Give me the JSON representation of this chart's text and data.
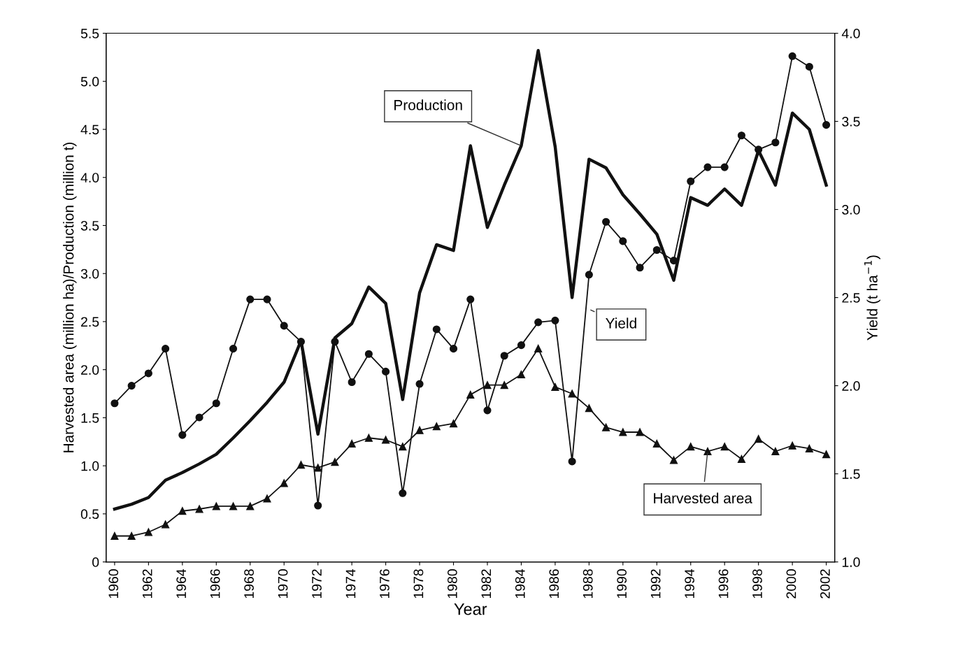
{
  "chart_data": {
    "type": "line",
    "xlabel": "Year",
    "ylabel": "Harvested area (million ha)/Production (million t)",
    "y2label": "Yield (t ha$^{−1}$)",
    "x": [
      1960,
      1961,
      1962,
      1963,
      1964,
      1965,
      1966,
      1967,
      1968,
      1969,
      1970,
      1971,
      1972,
      1973,
      1974,
      1975,
      1976,
      1977,
      1978,
      1979,
      1980,
      1981,
      1982,
      1983,
      1984,
      1985,
      1986,
      1987,
      1988,
      1989,
      1990,
      1991,
      1992,
      1993,
      1994,
      1995,
      1996,
      1997,
      1998,
      1999,
      2000,
      2001,
      2002
    ],
    "series": [
      {
        "name": "Production",
        "color": "#111111",
        "marker": "none",
        "values": [
          0.55,
          0.6,
          0.67,
          0.85,
          0.93,
          1.02,
          1.12,
          1.29,
          1.47,
          1.66,
          1.87,
          2.3,
          1.33,
          2.33,
          2.48,
          2.86,
          2.69,
          1.69,
          2.8,
          3.3,
          3.24,
          4.33,
          3.48,
          3.92,
          4.33,
          5.32,
          4.32,
          2.75,
          4.19,
          4.1,
          3.82,
          3.62,
          3.41,
          2.93,
          3.79,
          3.71,
          3.88,
          3.71,
          4.28,
          3.92,
          4.67,
          4.5,
          3.92
        ]
      },
      {
        "name": "Yield",
        "color": "#111111",
        "marker": "circle",
        "axis": "y2",
        "values": [
          1.9,
          2.0,
          2.07,
          2.21,
          1.72,
          1.82,
          1.9,
          2.21,
          2.49,
          2.49,
          2.34,
          2.25,
          1.32,
          2.25,
          2.02,
          2.18,
          2.08,
          1.39,
          2.01,
          2.32,
          2.21,
          2.49,
          1.86,
          2.17,
          2.23,
          2.36,
          2.37,
          1.57,
          2.63,
          2.93,
          2.82,
          2.67,
          2.77,
          2.71,
          3.16,
          3.24,
          3.24,
          3.42,
          3.34,
          3.38,
          3.87,
          3.81,
          3.48
        ]
      },
      {
        "name": "Harvested area",
        "color": "#111111",
        "marker": "triangle",
        "values": [
          0.27,
          0.27,
          0.31,
          0.39,
          0.53,
          0.55,
          0.58,
          0.58,
          0.58,
          0.66,
          0.82,
          1.01,
          0.98,
          1.04,
          1.23,
          1.29,
          1.27,
          1.2,
          1.37,
          1.41,
          1.44,
          1.74,
          1.84,
          1.84,
          1.95,
          2.22,
          1.82,
          1.75,
          1.6,
          1.4,
          1.35,
          1.35,
          1.23,
          1.06,
          1.2,
          1.15,
          1.2,
          1.07,
          1.28,
          1.15,
          1.21,
          1.18,
          1.12
        ]
      }
    ],
    "xlim": [
      1959.5,
      2002.5
    ],
    "xticks": [
      1960,
      1962,
      1964,
      1966,
      1968,
      1970,
      1972,
      1974,
      1976,
      1978,
      1980,
      1982,
      1984,
      1986,
      1988,
      1990,
      1992,
      1994,
      1996,
      1998,
      2000,
      2002
    ],
    "ylim": [
      0,
      5.5
    ],
    "yticks": [
      0,
      0.5,
      {
        "value": 1,
        "label": "1.0"
      },
      1.5,
      {
        "value": 2,
        "label": "2.0"
      },
      2.5,
      {
        "value": 3,
        "label": "3.0"
      },
      3.5,
      {
        "value": 4,
        "label": "4.0"
      },
      4.5,
      {
        "value": 5,
        "label": "5.0"
      },
      5.5
    ],
    "y2lim": [
      1,
      4
    ],
    "y2ticks": [
      {
        "value": 1,
        "label": "1.0"
      },
      1.5,
      {
        "value": 2,
        "label": "2.0"
      },
      2.5,
      {
        "value": 3,
        "label": "3.0"
      },
      3.5,
      {
        "value": 4,
        "label": "4.0"
      }
    ],
    "grid": false,
    "legend": false
  }
}
